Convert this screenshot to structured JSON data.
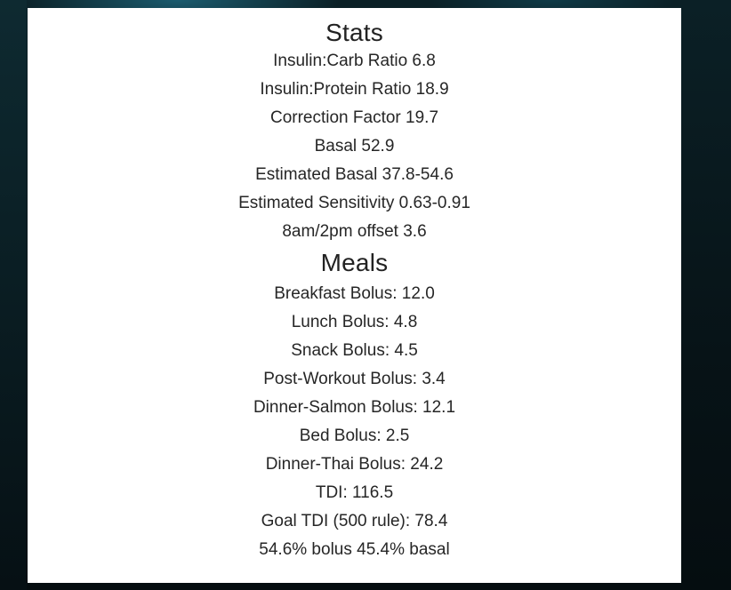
{
  "stats": {
    "title": "Stats",
    "items": [
      "Insulin:Carb Ratio 6.8",
      "Insulin:Protein Ratio 18.9",
      "Correction Factor 19.7",
      "Basal 52.9",
      "Estimated Basal 37.8-54.6",
      "Estimated Sensitivity 0.63-0.91",
      "8am/2pm offset 3.6"
    ]
  },
  "meals": {
    "title": "Meals",
    "items": [
      "Breakfast Bolus: 12.0",
      "Lunch Bolus: 4.8",
      "Snack Bolus: 4.5",
      "Post-Workout Bolus: 3.4",
      "Dinner-Salmon Bolus: 12.1",
      "Bed Bolus: 2.5",
      "Dinner-Thai Bolus: 24.2",
      "TDI: 116.5",
      "Goal TDI (500 rule): 78.4",
      "54.6% bolus 45.4% basal"
    ]
  }
}
